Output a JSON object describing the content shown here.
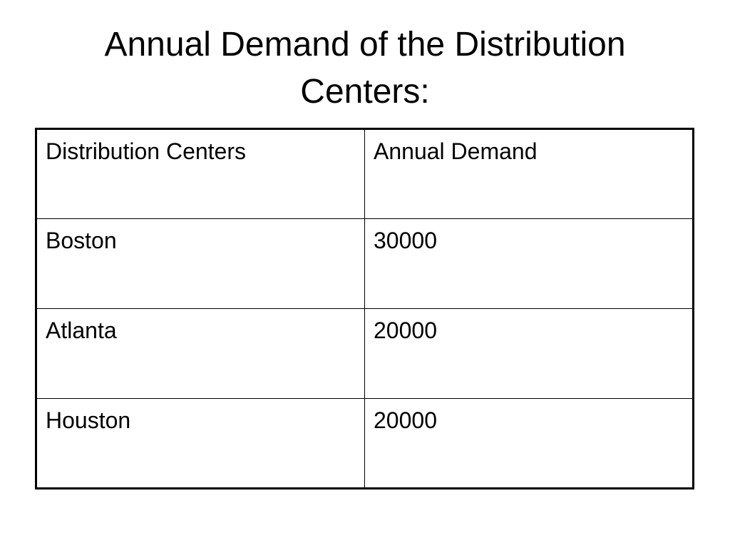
{
  "title": "Annual Demand of the Distribution Centers:",
  "table": {
    "header": [
      "Distribution Centers",
      "Annual Demand"
    ],
    "rows": [
      [
        "Boston",
        30000
      ],
      [
        "Atlanta",
        20000
      ],
      [
        "Houston",
        20000
      ]
    ]
  }
}
